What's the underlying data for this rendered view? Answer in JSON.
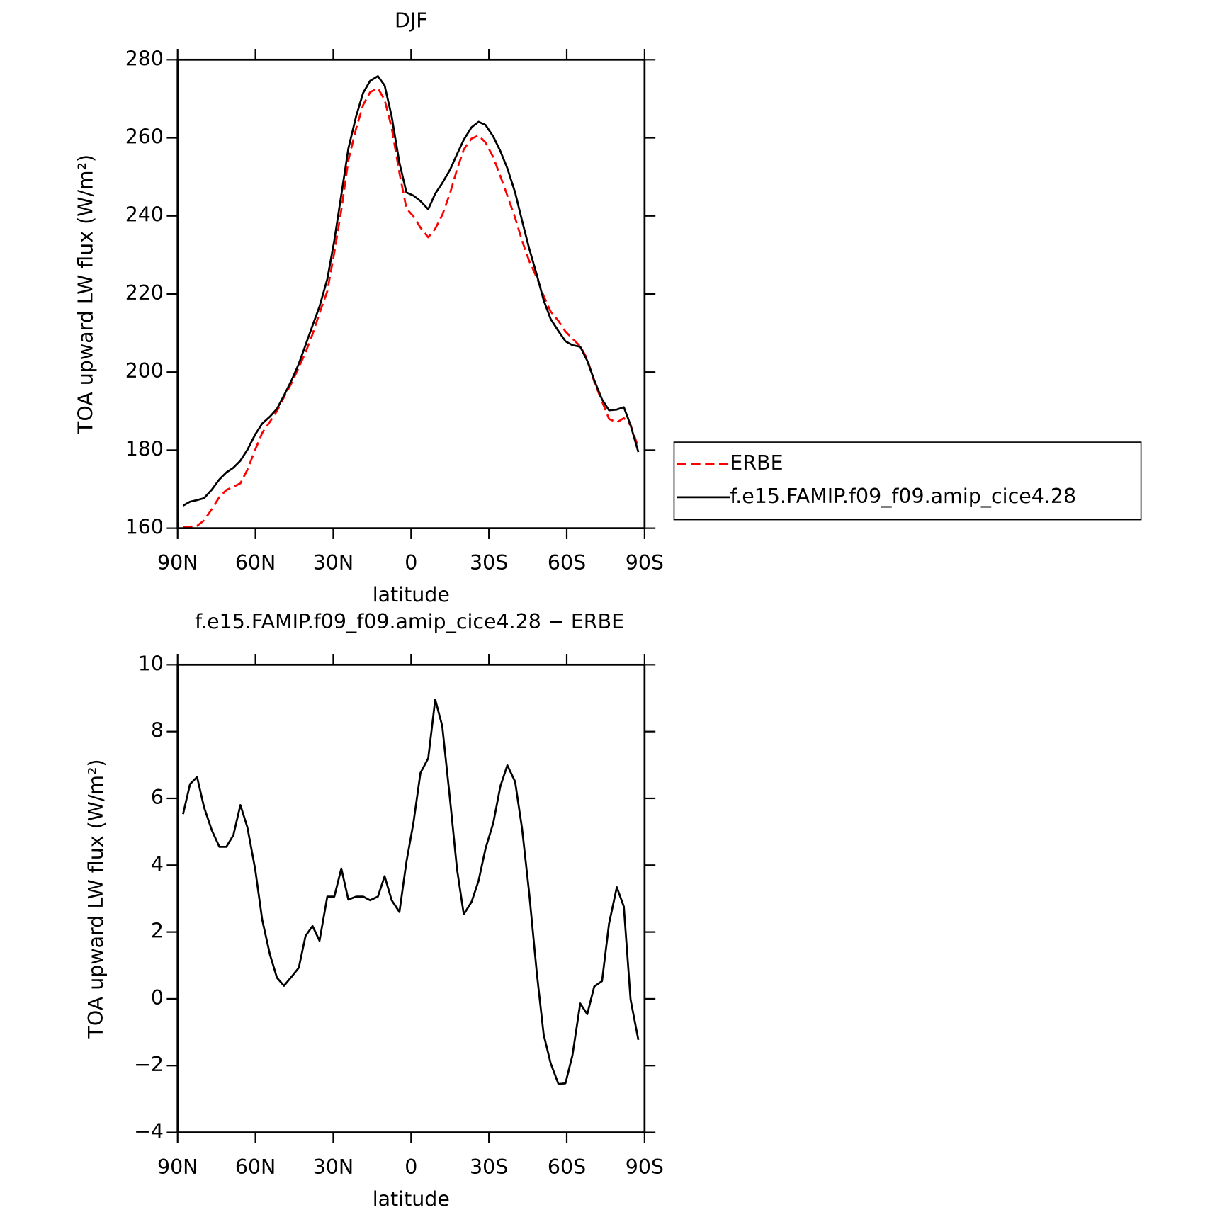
{
  "chart_data": [
    {
      "type": "line",
      "title": "DJF",
      "x_label": "latitude",
      "y_label": "TOA upward LW flux (W/m²)",
      "x": [
        87.9,
        85.2,
        82.5,
        79.8,
        76.8,
        73.9,
        71.2,
        68.5,
        65.8,
        63.1,
        60.1,
        57.4,
        54.4,
        51.7,
        49.0,
        46.0,
        43.3,
        40.7,
        38.0,
        35.3,
        32.3,
        29.6,
        26.9,
        24.2,
        21.2,
        18.5,
        15.8,
        12.8,
        10.2,
        7.5,
        4.5,
        1.8,
        -0.9,
        -3.6,
        -6.6,
        -9.3,
        -12.0,
        -15.0,
        -17.7,
        -20.3,
        -23.3,
        -26.0,
        -28.7,
        -31.7,
        -34.4,
        -37.1,
        -40.1,
        -42.8,
        -45.5,
        -48.5,
        -51.1,
        -53.8,
        -56.8,
        -59.5,
        -62.2,
        -65.2,
        -67.9,
        -70.6,
        -73.6,
        -76.3,
        -79.3,
        -82.0,
        -84.6,
        -87.6
      ],
      "series": [
        {
          "name": "ERBE",
          "color": "#ff0000",
          "dashed": true,
          "values": [
            160.3,
            160.4,
            160.6,
            162.0,
            164.9,
            168.0,
            169.8,
            170.6,
            171.5,
            175.0,
            180.1,
            184.4,
            187.3,
            190.0,
            193.6,
            197.3,
            201.2,
            205.0,
            209.7,
            215.1,
            220.7,
            230.6,
            241.5,
            254.2,
            262.4,
            268.4,
            271.7,
            272.7,
            269.7,
            262.6,
            251.0,
            241.9,
            239.9,
            237.0,
            234.5,
            236.7,
            240.2,
            245.8,
            251.9,
            257.0,
            259.8,
            260.6,
            258.8,
            255.0,
            250.2,
            245.2,
            239.5,
            233.6,
            228.5,
            224.1,
            219.5,
            215.5,
            213.1,
            210.4,
            208.6,
            206.6,
            203.4,
            197.5,
            192.5,
            188.0,
            187.1,
            188.2,
            186.4,
            180.7
          ]
        },
        {
          "name": "f.e15.FAMIP.f09_f09.amip_cice4.28",
          "color": "#000000",
          "dashed": false,
          "values": [
            165.8,
            166.8,
            167.2,
            167.7,
            169.9,
            172.5,
            174.3,
            175.5,
            177.3,
            180.1,
            184.0,
            186.8,
            188.6,
            190.6,
            194.0,
            198.0,
            202.1,
            206.9,
            211.9,
            216.8,
            223.8,
            233.7,
            245.4,
            257.2,
            265.5,
            271.5,
            274.6,
            275.8,
            273.4,
            265.5,
            253.6,
            246.0,
            245.2,
            243.8,
            241.7,
            245.7,
            248.4,
            251.8,
            255.8,
            259.5,
            262.7,
            264.1,
            263.3,
            260.3,
            256.6,
            252.2,
            246.0,
            238.7,
            231.7,
            224.8,
            218.4,
            213.6,
            210.5,
            207.9,
            206.9,
            206.5,
            202.9,
            197.9,
            193.0,
            190.2,
            190.4,
            191.0,
            186.4,
            179.5
          ]
        }
      ],
      "xlim": [
        90,
        -90
      ],
      "xticks": [
        {
          "value": 90,
          "label": "90N"
        },
        {
          "value": 60,
          "label": "60N"
        },
        {
          "value": 30,
          "label": "30N"
        },
        0,
        {
          "value": -30,
          "label": "30S"
        },
        {
          "value": -60,
          "label": "60S"
        },
        {
          "value": -90,
          "label": "90S"
        }
      ],
      "ylim": [
        160,
        280
      ],
      "yticks": [
        160,
        180,
        200,
        220,
        240,
        260,
        280
      ],
      "legend": "outside-right"
    },
    {
      "type": "line",
      "title": "f.e15.FAMIP.f09_f09.amip_cice4.28 − ERBE",
      "x_label": "latitude",
      "y_label": "TOA upward LW flux (W/m²)",
      "x": [
        87.9,
        85.2,
        82.5,
        79.8,
        76.8,
        73.9,
        71.2,
        68.5,
        65.8,
        63.1,
        60.1,
        57.4,
        54.4,
        51.7,
        49.0,
        46.0,
        43.3,
        40.7,
        38.0,
        35.3,
        32.3,
        29.6,
        26.9,
        24.2,
        21.2,
        18.5,
        15.8,
        12.8,
        10.2,
        7.5,
        4.5,
        1.8,
        -0.9,
        -3.6,
        -6.6,
        -9.3,
        -12.0,
        -15.0,
        -17.7,
        -20.3,
        -23.3,
        -26.0,
        -28.7,
        -31.7,
        -34.4,
        -37.1,
        -40.1,
        -42.8,
        -45.5,
        -48.5,
        -51.1,
        -53.8,
        -56.8,
        -59.5,
        -62.2,
        -65.2,
        -67.9,
        -70.6,
        -73.6,
        -76.3,
        -79.3,
        -82.0,
        -84.6,
        -87.6
      ],
      "series": [
        {
          "color": "#000000",
          "dashed": false,
          "values": [
            5.53,
            6.43,
            6.64,
            5.73,
            5.04,
            4.55,
            4.55,
            4.9,
            5.8,
            5.13,
            3.88,
            2.37,
            1.32,
            0.63,
            0.39,
            0.67,
            0.93,
            1.88,
            2.18,
            1.74,
            3.06,
            3.06,
            3.9,
            2.97,
            3.06,
            3.06,
            2.95,
            3.06,
            3.67,
            2.95,
            2.6,
            4.1,
            5.27,
            6.76,
            7.2,
            8.96,
            8.17,
            5.97,
            3.88,
            2.53,
            2.9,
            3.53,
            4.5,
            5.27,
            6.36,
            6.99,
            6.5,
            5.08,
            3.18,
            0.74,
            -1.07,
            -1.93,
            -2.55,
            -2.53,
            -1.69,
            -0.14,
            -0.46,
            0.37,
            0.53,
            2.25,
            3.34,
            2.76,
            -0.02,
            -1.23
          ]
        }
      ],
      "xlim": [
        90,
        -90
      ],
      "xticks": [
        {
          "value": 90,
          "label": "90N"
        },
        {
          "value": 60,
          "label": "60N"
        },
        {
          "value": 30,
          "label": "30N"
        },
        0,
        {
          "value": -30,
          "label": "30S"
        },
        {
          "value": -60,
          "label": "60S"
        },
        {
          "value": -90,
          "label": "90S"
        }
      ],
      "ylim": [
        -4,
        10
      ],
      "yticks": [
        {
          "value": -4,
          "label": "−4"
        },
        {
          "value": -2,
          "label": "−2"
        },
        0,
        2,
        4,
        6,
        8,
        10
      ]
    }
  ]
}
